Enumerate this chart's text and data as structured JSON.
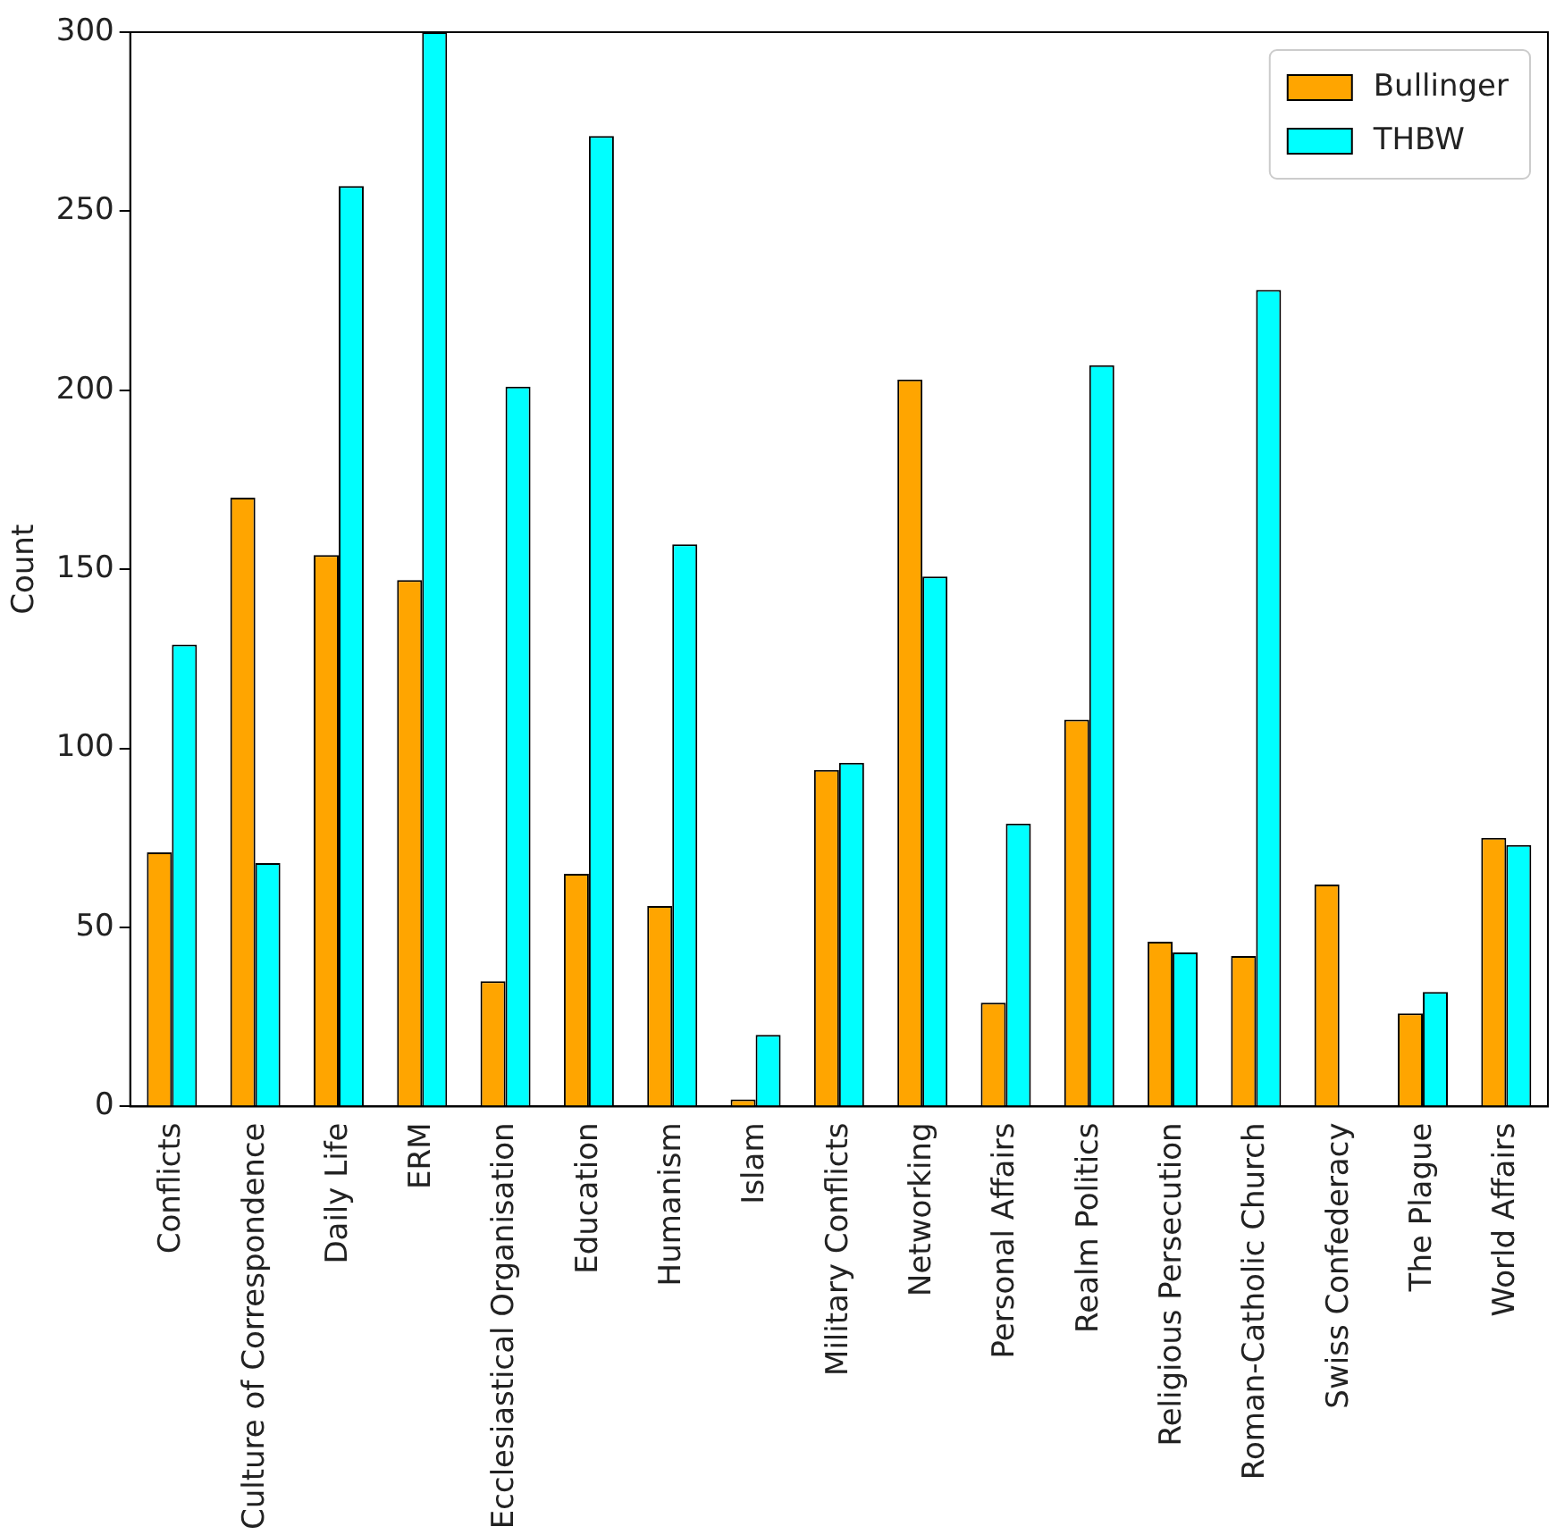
{
  "chart_data": {
    "type": "bar",
    "ylabel": "Count",
    "categories": [
      "Conflicts",
      "Culture of Correspondence",
      "Daily Life",
      "ERM",
      "Ecclesiastical Organisation",
      "Education",
      "Humanism",
      "Islam",
      "Military Conflicts",
      "Networking",
      "Personal Affairs",
      "Realm Politics",
      "Religious Persecution",
      "Roman-Catholic Church",
      "Swiss Confederacy",
      "The Plague",
      "World Affairs"
    ],
    "series": [
      {
        "name": "Bullinger",
        "color": "#ffa500",
        "values": [
          71,
          170,
          154,
          147,
          35,
          65,
          56,
          2,
          94,
          203,
          29,
          108,
          46,
          42,
          62,
          26,
          75
        ]
      },
      {
        "name": "THBW",
        "color": "#00ffff",
        "values": [
          129,
          68,
          257,
          300,
          201,
          271,
          157,
          20,
          96,
          148,
          79,
          207,
          43,
          228,
          0,
          32,
          73
        ]
      }
    ],
    "ylim": [
      0,
      300
    ],
    "yticks": [
      0,
      50,
      100,
      150,
      200,
      250,
      300
    ],
    "grid": false,
    "legend": "top right"
  }
}
